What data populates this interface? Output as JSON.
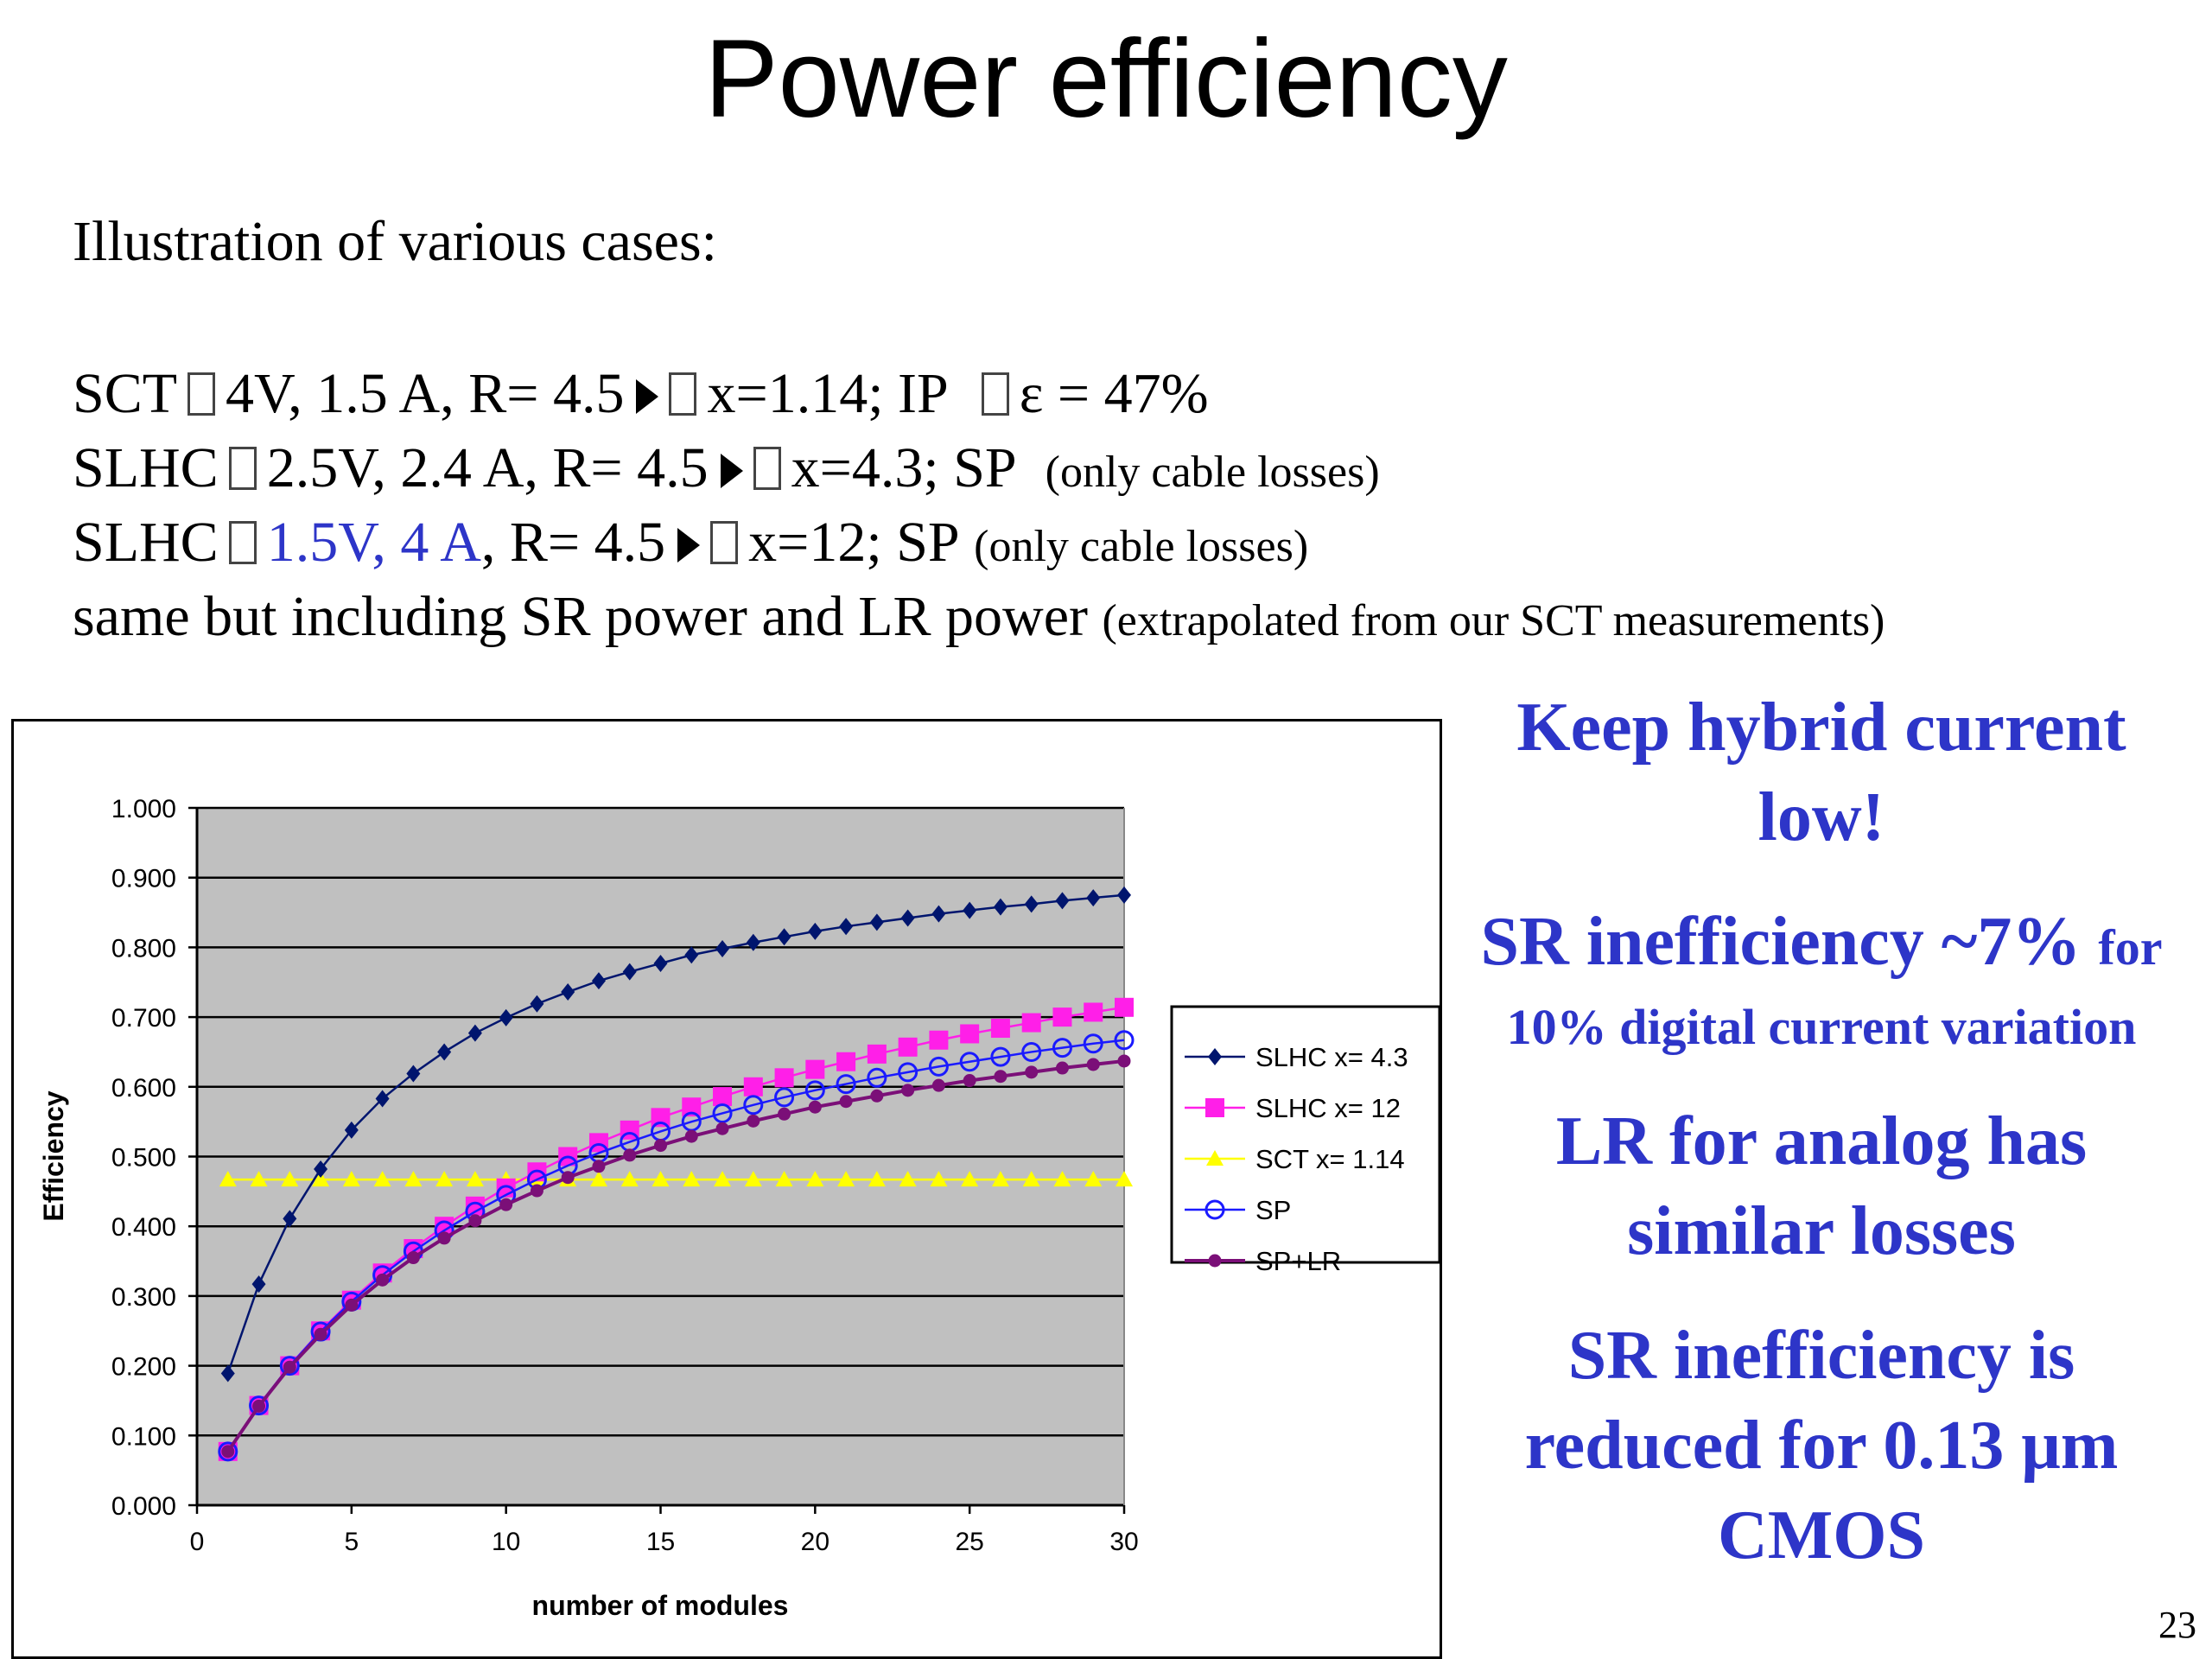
{
  "title": "Power efficiency",
  "intro": "Illustration of various cases:",
  "cases": [
    {
      "label": "SCT",
      "text": "4V, 1.5 A, R= 4.5",
      "result": "x=1.14; IP",
      "extra": "ε = 47%"
    },
    {
      "label": "SLHC",
      "text": "2.5V, 2.4 A, R= 4.5",
      "result": "x=4.3; SP",
      "note": "(only cable losses)"
    },
    {
      "label": "SLHC",
      "highlight": "1.5V, 4 A",
      "text": ", R= 4.5",
      "result": "x=12; SP",
      "note": "(only cable losses)"
    },
    {
      "label": "same but including SR power and LR power",
      "note": "(extrapolated from our SCT measurements)"
    }
  ],
  "right_notes": {
    "keep": "Keep hybrid current low!",
    "sr_ineff": "SR inefficiency ~7%",
    "sr_for": "for",
    "sr_variation": "10% digital current variation",
    "lr": "LR for analog has similar losses",
    "sr_reduced": "SR inefficiency is reduced for 0.13",
    "mu_glyph": "μ",
    "sr_reduced_unit": "m",
    "cmos": "CMOS"
  },
  "page_number": "23",
  "colors": {
    "slhc43": "#00156e",
    "slhc12": "#ff1fe8",
    "sct": "#ffff00",
    "sp": "#1a1aff",
    "splr": "#7b0f78",
    "plot_bg": "#c0c0c0",
    "text_blue": "#2d35c8"
  },
  "chart_data": {
    "type": "line",
    "xlabel": "number of modules",
    "ylabel": "Efficiency",
    "xlim": [
      0,
      30
    ],
    "ylim": [
      0,
      1
    ],
    "xticks": [
      "0",
      "5",
      "10",
      "15",
      "20",
      "25",
      "30"
    ],
    "yticks": [
      "0.000",
      "0.100",
      "0.200",
      "0.300",
      "0.400",
      "0.500",
      "0.600",
      "0.700",
      "0.800",
      "0.900",
      "1.000"
    ],
    "grid": "horizontal",
    "legend": "right",
    "x": [
      1,
      2,
      3,
      4,
      5,
      6,
      7,
      8,
      9,
      10,
      11,
      12,
      13,
      14,
      15,
      16,
      17,
      18,
      19,
      20,
      21,
      22,
      23,
      24,
      25,
      26,
      27,
      28,
      29,
      30
    ],
    "series": [
      {
        "name": "SLHC x= 4.3",
        "marker": "diamond",
        "color_key": "slhc43",
        "values": [
          0.189,
          0.317,
          0.411,
          0.482,
          0.538,
          0.583,
          0.619,
          0.65,
          0.677,
          0.699,
          0.719,
          0.736,
          0.752,
          0.765,
          0.777,
          0.789,
          0.798,
          0.807,
          0.815,
          0.823,
          0.83,
          0.836,
          0.842,
          0.848,
          0.853,
          0.858,
          0.862,
          0.867,
          0.871,
          0.875
        ]
      },
      {
        "name": "SLHC x= 12",
        "marker": "square",
        "color_key": "slhc12",
        "values": [
          0.077,
          0.143,
          0.2,
          0.25,
          0.294,
          0.333,
          0.368,
          0.4,
          0.429,
          0.455,
          0.478,
          0.5,
          0.52,
          0.538,
          0.556,
          0.571,
          0.586,
          0.6,
          0.613,
          0.625,
          0.636,
          0.647,
          0.657,
          0.667,
          0.676,
          0.684,
          0.692,
          0.7,
          0.707,
          0.714
        ]
      },
      {
        "name": "SCT  x= 1.14",
        "marker": "triangle",
        "color_key": "sct",
        "values": [
          0.467,
          0.467,
          0.467,
          0.467,
          0.467,
          0.467,
          0.467,
          0.467,
          0.467,
          0.467,
          0.467,
          0.467,
          0.467,
          0.467,
          0.467,
          0.467,
          0.467,
          0.467,
          0.467,
          0.467,
          0.467,
          0.467,
          0.467,
          0.467,
          0.467,
          0.467,
          0.467,
          0.467,
          0.467,
          0.467
        ]
      },
      {
        "name": "SP",
        "marker": "circle-open",
        "color_key": "sp",
        "values": [
          0.077,
          0.143,
          0.2,
          0.249,
          0.292,
          0.33,
          0.364,
          0.394,
          0.421,
          0.445,
          0.467,
          0.487,
          0.505,
          0.521,
          0.536,
          0.55,
          0.562,
          0.574,
          0.585,
          0.595,
          0.604,
          0.613,
          0.621,
          0.629,
          0.636,
          0.643,
          0.65,
          0.656,
          0.662,
          0.667
        ]
      },
      {
        "name": "SP+LR",
        "marker": "circle",
        "color_key": "splr",
        "values": [
          0.077,
          0.142,
          0.198,
          0.245,
          0.287,
          0.323,
          0.355,
          0.383,
          0.408,
          0.431,
          0.451,
          0.47,
          0.486,
          0.502,
          0.516,
          0.529,
          0.54,
          0.551,
          0.561,
          0.571,
          0.579,
          0.587,
          0.595,
          0.602,
          0.609,
          0.615,
          0.621,
          0.627,
          0.632,
          0.637
        ]
      }
    ]
  }
}
